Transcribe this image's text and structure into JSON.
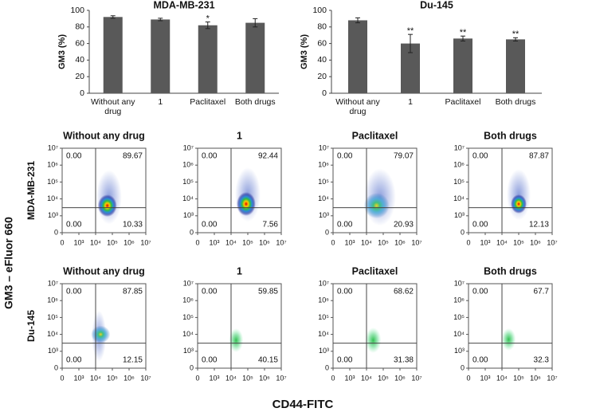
{
  "chart_data": [
    {
      "type": "bar",
      "title": "MDA-MB-231",
      "ylabel": "GM3 (%)",
      "categories": [
        "Without any drug",
        "1",
        "Paclitaxel",
        "Both drugs"
      ],
      "values": [
        92,
        89,
        82,
        85
      ],
      "errors": [
        1.5,
        1.5,
        4,
        5
      ],
      "annotations": [
        {
          "index": 2,
          "text": "*"
        }
      ],
      "color": "#595959",
      "ylim": [
        0,
        100
      ],
      "yticks": [
        0,
        20,
        40,
        60,
        80,
        100
      ]
    },
    {
      "type": "bar",
      "title": "Du-145",
      "ylabel": "GM3 (%)",
      "categories": [
        "Without any drug",
        "1",
        "Paclitaxel",
        "Both drugs"
      ],
      "values": [
        88,
        60,
        66,
        65
      ],
      "errors": [
        3,
        11,
        3,
        2
      ],
      "annotations": [
        {
          "index": 1,
          "text": "**"
        },
        {
          "index": 2,
          "text": "**"
        },
        {
          "index": 3,
          "text": "**"
        }
      ],
      "color": "#595959",
      "ylim": [
        0,
        100
      ],
      "yticks": [
        0,
        20,
        40,
        60,
        80,
        100
      ]
    }
  ],
  "flow_panel": {
    "xlabel": "CD44-FITC",
    "ylabel": "GM3 – eFluor 660",
    "log_scale": true,
    "ticks": [
      0,
      {
        "value": 1000,
        "label": "10³"
      },
      {
        "value": 10000,
        "label": "10⁴"
      },
      {
        "value": 100000,
        "label": "10⁵"
      },
      {
        "value": 1000000,
        "label": "10⁶"
      },
      {
        "value": 10000000,
        "label": "10⁷"
      }
    ],
    "gate": {
      "x": 10000,
      "y": 3000
    },
    "rows": [
      {
        "label": "MDA-MB-231",
        "plots": [
          {
            "title": "Without any drug",
            "quadrants": [
              "0.00",
              "89.67",
              "0.00",
              "10.33"
            ]
          },
          {
            "title": "1",
            "quadrants": [
              "0.00",
              "92.44",
              "0.00",
              "7.56"
            ]
          },
          {
            "title": "Paclitaxel",
            "quadrants": [
              "0.00",
              "79.07",
              "0.00",
              "20.93"
            ]
          },
          {
            "title": "Both drugs",
            "quadrants": [
              "0.00",
              "87.87",
              "0.00",
              "12.13"
            ]
          }
        ]
      },
      {
        "label": "Du-145",
        "plots": [
          {
            "title": "Without any drug",
            "quadrants": [
              "0.00",
              "87.85",
              "0.00",
              "12.15"
            ]
          },
          {
            "title": "1",
            "quadrants": [
              "0.00",
              "59.85",
              "0.00",
              "40.15"
            ]
          },
          {
            "title": "Paclitaxel",
            "quadrants": [
              "0.00",
              "68.62",
              "0.00",
              "31.38"
            ]
          },
          {
            "title": "Both drugs",
            "quadrants": [
              "0.00",
              "67.7",
              "0.00",
              "32.3"
            ]
          }
        ]
      }
    ]
  }
}
